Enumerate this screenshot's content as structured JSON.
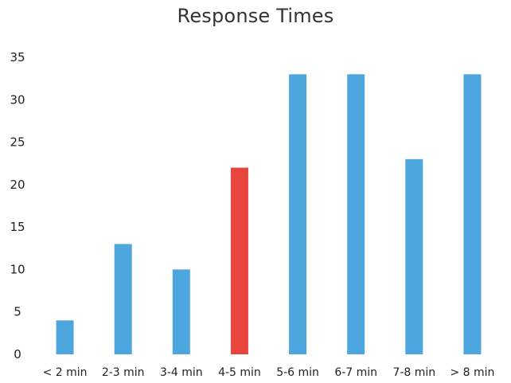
{
  "chart_data": {
    "type": "bar",
    "title": "Response Times",
    "xlabel": "",
    "ylabel": "",
    "categories": [
      "< 2 min",
      "2-3 min",
      "3-4 min",
      "4-5 min",
      "5-6 min",
      "6-7 min",
      "7-8 min",
      "> 8 min"
    ],
    "values": [
      4,
      13,
      10,
      22,
      33,
      33,
      23,
      33
    ],
    "ylim": [
      0,
      35
    ],
    "yticks": [
      0,
      5,
      10,
      15,
      20,
      25,
      30,
      35
    ],
    "grid": false,
    "legend": "none",
    "colors": {
      "default_bar": "#4da6dd",
      "highlight_bar": "#e8453f"
    },
    "highlight_category": "4-5 min"
  }
}
